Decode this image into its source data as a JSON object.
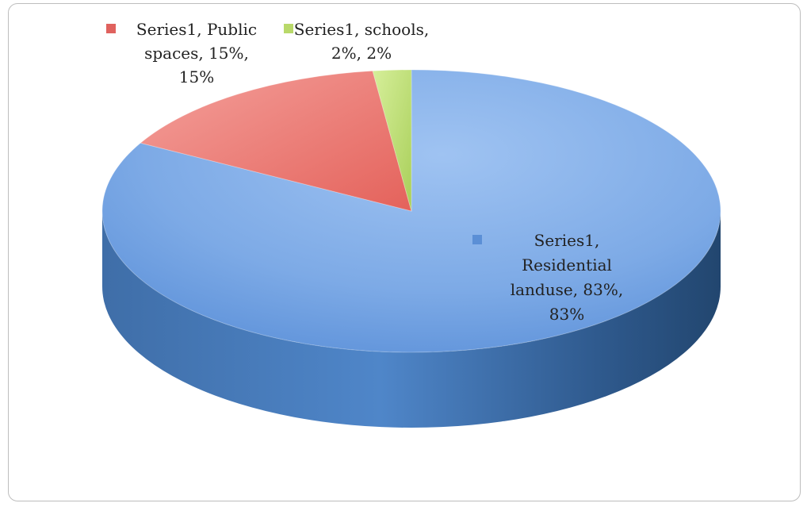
{
  "chart_data": {
    "type": "pie",
    "style": "3d",
    "series_name": "Series1",
    "slices": [
      {
        "category": "Residential landuse",
        "value": 0.83,
        "percent_label": "83%",
        "value_label": "83%",
        "color": "#5b8fd6",
        "label_lines": [
          "Series1,",
          "Residential",
          "landuse, 83%,",
          "83%"
        ]
      },
      {
        "category": "Public spaces",
        "value": 0.15,
        "percent_label": "15%",
        "value_label": "15%",
        "color": "#e0625e",
        "label_lines": [
          "Series1, Public",
          "spaces, 15%,",
          "15%"
        ]
      },
      {
        "category": "schools",
        "value": 0.02,
        "percent_label": "2%",
        "value_label": "2%",
        "color": "#b9d96a",
        "label_lines": [
          "Series1, schools,",
          "2%, 2%"
        ]
      }
    ],
    "title": "",
    "legend": "none",
    "data_label_keys": "legend-key-swatches"
  }
}
